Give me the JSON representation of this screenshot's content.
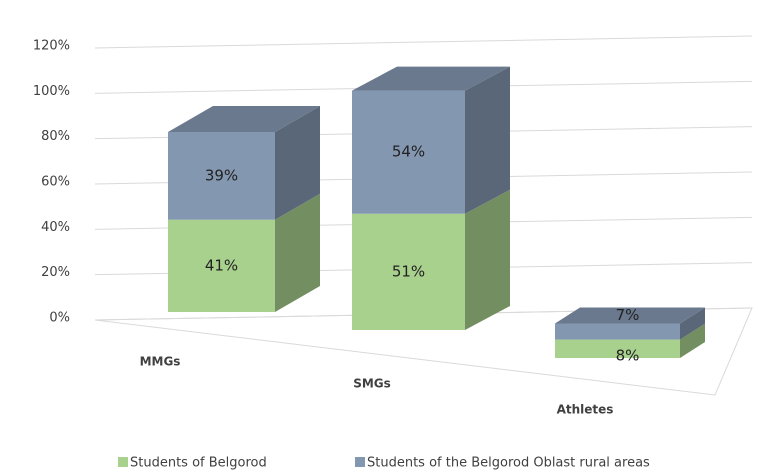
{
  "chart_data": {
    "type": "bar3d_stacked",
    "categories": [
      "MMGs",
      "SMGs",
      "Athletes"
    ],
    "series": [
      {
        "name": "Students of Belgorod",
        "color": "#a9d18e",
        "values": [
          41,
          51,
          8
        ],
        "value_labels": [
          "41%",
          "51%",
          "8%"
        ]
      },
      {
        "name": "Students of the Belgorod Oblast rural areas",
        "color": "#8497b0",
        "values": [
          39,
          54,
          7
        ],
        "value_labels": [
          "39%",
          "54%",
          "7%"
        ]
      }
    ],
    "ylim": [
      0,
      120
    ],
    "yticks": [
      {
        "value": 0,
        "label": "0%"
      },
      {
        "value": 20,
        "label": "20%"
      },
      {
        "value": 40,
        "label": "40%"
      },
      {
        "value": 60,
        "label": "60%"
      },
      {
        "value": 80,
        "label": "80%"
      },
      {
        "value": 100,
        "label": "100%"
      },
      {
        "value": 120,
        "label": "120%"
      }
    ],
    "grid": true,
    "legend": "bottom"
  }
}
